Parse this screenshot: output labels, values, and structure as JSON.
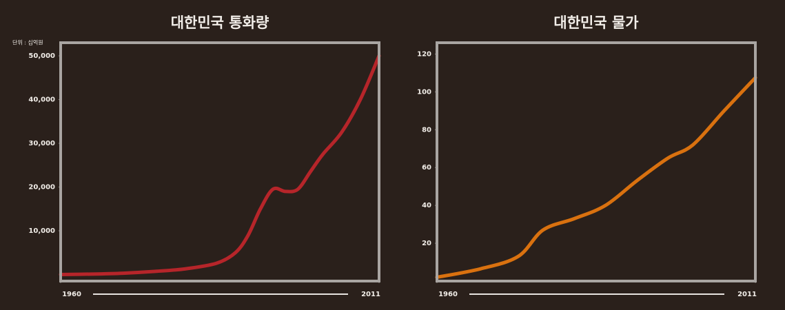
{
  "chart_data": [
    {
      "type": "line",
      "title": "대한민국 통화량",
      "unit": "단위 : 십억원",
      "x": [
        1960,
        1965,
        1970,
        1975,
        1980,
        1985,
        1988,
        1990,
        1992,
        1994,
        1996,
        1998,
        2000,
        2002,
        2005,
        2008,
        2011
      ],
      "values": [
        0,
        100,
        300,
        700,
        1300,
        2600,
        5000,
        8900,
        15000,
        19500,
        19000,
        19500,
        23500,
        27500,
        32500,
        40000,
        50000
      ],
      "color": "#c2262b",
      "xlim": [
        1960,
        2011
      ],
      "xticks": [
        1960,
        2011
      ],
      "ylim": [
        -1500,
        53000
      ],
      "yticks": [
        {
          "value": 10000,
          "label": "10,000"
        },
        {
          "value": 20000,
          "label": "20,000"
        },
        {
          "value": 30000,
          "label": "30,000"
        },
        {
          "value": 40000,
          "label": "40,000"
        },
        {
          "value": 50000,
          "label": "50,000"
        }
      ]
    },
    {
      "type": "line",
      "title": "대한민국 물가",
      "x": [
        1960,
        1967,
        1973,
        1977,
        1982,
        1987,
        1992,
        1997,
        2001,
        2006,
        2011
      ],
      "values": [
        2,
        6.5,
        13,
        27,
        33,
        40,
        53,
        65,
        72,
        90,
        107.5
      ],
      "color": "#e8780e",
      "xlim": [
        1960,
        2011
      ],
      "xticks": [
        1960,
        2011
      ],
      "ylim": [
        0,
        126
      ],
      "yticks": [
        20,
        40,
        60,
        80,
        100,
        120
      ]
    }
  ]
}
